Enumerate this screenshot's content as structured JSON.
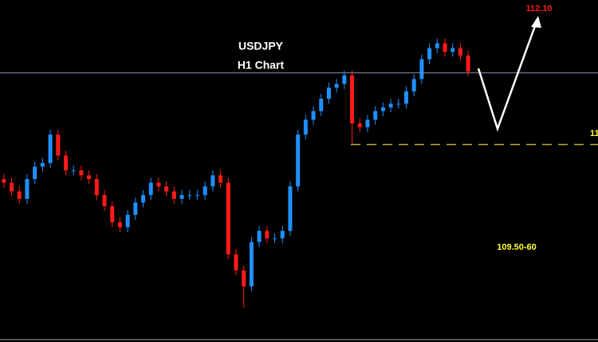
{
  "chart_data": {
    "type": "candlestick",
    "title": "USDJPY",
    "subtitle": "H1 Chart",
    "annotations": [
      {
        "text": "112.10",
        "color": "#ff1a1a"
      },
      {
        "text": "109.50-60",
        "color": "#ffff33"
      },
      {
        "text": "11",
        "color": "#ffff33"
      }
    ],
    "up_color": "#1e90ff",
    "down_color": "#ff1a1a",
    "ylim": [
      109.4,
      112.17
    ],
    "support_level": 111.0,
    "support_color": "#b5b52a",
    "reference_level": 111.58,
    "reference_color": "#8a8fa8",
    "open": [
      110.72,
      110.69,
      110.62,
      110.56,
      110.72,
      110.82,
      110.85,
      111.08,
      110.91,
      110.79,
      110.79,
      110.75,
      110.72,
      110.59,
      110.5,
      110.37,
      110.33,
      110.43,
      110.53,
      110.59,
      110.69,
      110.66,
      110.62,
      110.56,
      110.59,
      110.59,
      110.59,
      110.66,
      110.75,
      110.69,
      110.11,
      109.98,
      109.85,
      110.21,
      110.3,
      110.24,
      110.24,
      110.3,
      110.66,
      111.08,
      111.2,
      111.27,
      111.37,
      111.46,
      111.49,
      111.56,
      111.17,
      111.14,
      111.2,
      111.27,
      111.3,
      111.33,
      111.33,
      111.43,
      111.53,
      111.69,
      111.78,
      111.82,
      111.75,
      111.78,
      111.72
    ],
    "high": [
      110.76,
      110.73,
      110.66,
      110.76,
      110.86,
      110.89,
      111.12,
      111.12,
      110.95,
      110.83,
      110.83,
      110.79,
      110.76,
      110.63,
      110.54,
      110.41,
      110.47,
      110.57,
      110.63,
      110.73,
      110.73,
      110.7,
      110.66,
      110.63,
      110.63,
      110.63,
      110.7,
      110.79,
      110.79,
      110.73,
      110.15,
      110.02,
      110.25,
      110.34,
      110.34,
      110.28,
      110.34,
      110.7,
      111.12,
      111.24,
      111.31,
      111.41,
      111.5,
      111.53,
      111.6,
      111.6,
      111.21,
      111.24,
      111.31,
      111.34,
      111.37,
      111.37,
      111.47,
      111.57,
      111.73,
      111.82,
      111.86,
      111.86,
      111.82,
      111.82,
      111.76
    ],
    "low": [
      110.65,
      110.58,
      110.52,
      110.52,
      110.68,
      110.78,
      110.81,
      110.87,
      110.75,
      110.75,
      110.71,
      110.68,
      110.55,
      110.46,
      110.33,
      110.29,
      110.29,
      110.39,
      110.49,
      110.55,
      110.62,
      110.58,
      110.52,
      110.52,
      110.55,
      110.55,
      110.55,
      110.62,
      110.65,
      110.07,
      109.94,
      109.68,
      109.81,
      110.17,
      110.2,
      110.2,
      110.2,
      110.26,
      110.62,
      111.04,
      111.16,
      111.23,
      111.33,
      111.42,
      111.45,
      111.0,
      111.1,
      111.1,
      111.16,
      111.23,
      111.26,
      111.29,
      111.29,
      111.39,
      111.49,
      111.65,
      111.74,
      111.71,
      111.71,
      111.68,
      111.55
    ],
    "close": [
      110.69,
      110.62,
      110.56,
      110.72,
      110.82,
      110.85,
      111.08,
      110.91,
      110.79,
      110.79,
      110.75,
      110.72,
      110.59,
      110.5,
      110.37,
      110.33,
      110.43,
      110.53,
      110.59,
      110.69,
      110.66,
      110.62,
      110.56,
      110.59,
      110.59,
      110.59,
      110.66,
      110.75,
      110.69,
      110.11,
      109.98,
      109.85,
      110.21,
      110.3,
      110.24,
      110.24,
      110.3,
      110.66,
      111.08,
      111.2,
      111.27,
      111.37,
      111.46,
      111.49,
      111.56,
      111.17,
      111.14,
      111.2,
      111.27,
      111.3,
      111.33,
      111.33,
      111.43,
      111.53,
      111.69,
      111.78,
      111.82,
      111.75,
      111.78,
      111.72,
      111.59
    ]
  }
}
